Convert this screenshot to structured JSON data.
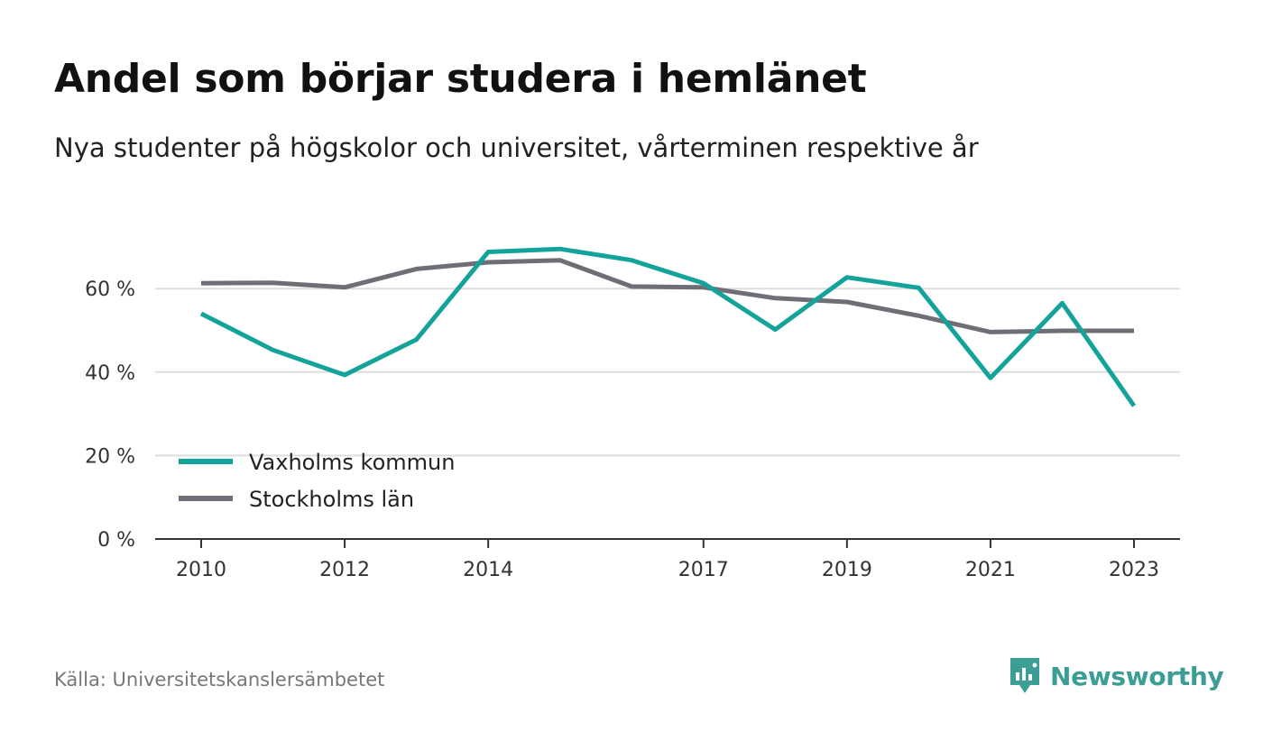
{
  "header": {
    "title": "Andel som börjar studera i hemlänet",
    "subtitle": "Nya studenter på högskolor och universitet, vårterminen respektive år"
  },
  "footer": {
    "source": "Källa: Universitetskanslersämbetet",
    "brand": "Newsworthy",
    "brand_icon": "newsworthy-logo-icon"
  },
  "colors": {
    "series_primary": "#14a39a",
    "series_secondary": "#6e6e77",
    "grid": "#dddddd",
    "axis": "#333333",
    "brand": "#3a9e94"
  },
  "chart_data": {
    "type": "line",
    "x": [
      2010,
      2011,
      2012,
      2013,
      2014,
      2015,
      2016,
      2017,
      2018,
      2019,
      2020,
      2021,
      2022,
      2023
    ],
    "x_tick_labels": [
      "2010",
      "2012",
      "2014",
      "2017",
      "2019",
      "2021",
      "2023"
    ],
    "y_tick_values": [
      0,
      20,
      40,
      60
    ],
    "y_tick_labels": [
      "0 %",
      "20 %",
      "40 %",
      "60 %"
    ],
    "ylim": [
      0,
      70
    ],
    "grid": true,
    "legend_position": "bottom-left",
    "series": [
      {
        "name": "Vaxholms kommun",
        "color": "#14a39a",
        "values": [
          54,
          45.3,
          39.3,
          47.8,
          68.8,
          69.5,
          66.8,
          61.3,
          50.2,
          62.7,
          60.2,
          38.6,
          56.5,
          31.9
        ]
      },
      {
        "name": "Stockholms län",
        "color": "#6e6e77",
        "values": [
          61.3,
          61.4,
          60.3,
          64.7,
          66.3,
          66.8,
          60.5,
          60.3,
          57.7,
          56.8,
          53.5,
          49.6,
          49.9,
          49.9
        ]
      }
    ]
  }
}
